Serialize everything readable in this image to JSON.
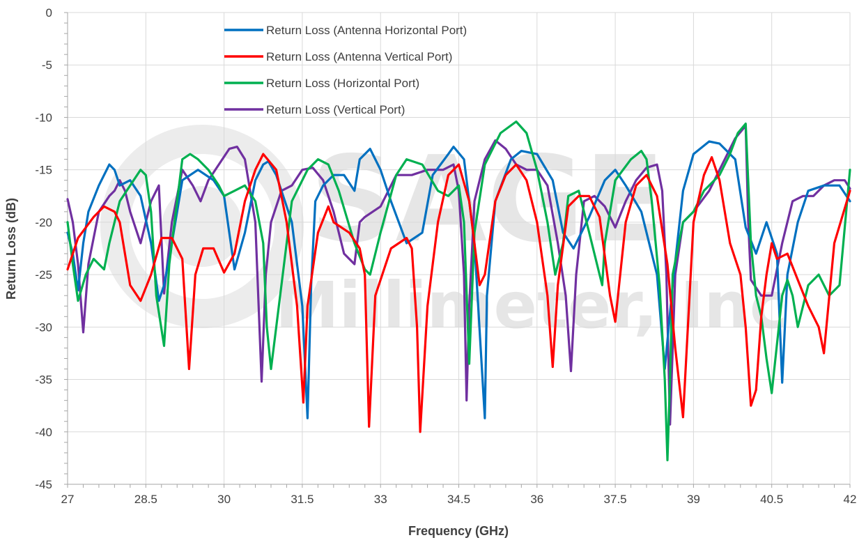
{
  "chart_data": {
    "type": "line",
    "title": "",
    "xlabel": "Frequency (GHz)",
    "ylabel": "Return Loss (dB)",
    "xlim": [
      27,
      42
    ],
    "ylim": [
      -45,
      0
    ],
    "xticks": [
      "27",
      "28.5",
      "30",
      "31.5",
      "33",
      "34.5",
      "36",
      "37.5",
      "39",
      "40.5",
      "42"
    ],
    "yticks": [
      "0",
      "-5",
      "-10",
      "-15",
      "-20",
      "-25",
      "-30",
      "-35",
      "-40",
      "-45"
    ],
    "grid": "major gridlines",
    "legend_position": "top-center",
    "watermark": [
      "SAGE",
      "Millimeter, Inc"
    ],
    "series": [
      {
        "name": "Return Loss (Antenna Horizontal Port)",
        "color": "#0070c0",
        "x": [
          27.0,
          27.1,
          27.2,
          27.3,
          27.4,
          27.6,
          27.8,
          27.9,
          28.0,
          28.2,
          28.4,
          28.6,
          28.75,
          28.85,
          29.0,
          29.2,
          29.5,
          29.8,
          30.0,
          30.2,
          30.4,
          30.6,
          30.75,
          30.85,
          31.0,
          31.3,
          31.5,
          31.6,
          31.67,
          31.75,
          31.9,
          32.1,
          32.3,
          32.5,
          32.55,
          32.6,
          32.8,
          33.0,
          33.2,
          33.5,
          33.8,
          34.0,
          34.3,
          34.4,
          34.6,
          34.8,
          35.0,
          35.04,
          35.2,
          35.5,
          35.7,
          36.0,
          36.3,
          36.5,
          36.7,
          37.0,
          37.3,
          37.5,
          37.7,
          38.0,
          38.3,
          38.45,
          38.6,
          38.8,
          39.0,
          39.3,
          39.5,
          39.8,
          40.0,
          40.2,
          40.4,
          40.6,
          40.7,
          40.8,
          41.0,
          41.2,
          41.5,
          41.8,
          42.0
        ],
        "values": [
          -21,
          -23,
          -26.5,
          -22,
          -19,
          -16.5,
          -14.5,
          -15,
          -16.5,
          -16,
          -17.5,
          -22,
          -27.5,
          -26,
          -22,
          -16,
          -15,
          -16,
          -17.5,
          -24.5,
          -21,
          -16,
          -14.5,
          -14.2,
          -15.5,
          -20,
          -28,
          -38.7,
          -26,
          -18,
          -16.5,
          -15.5,
          -15.5,
          -17,
          -15.5,
          -14,
          -13,
          -15,
          -18,
          -22,
          -21,
          -15.5,
          -13.5,
          -12.8,
          -14,
          -22,
          -38.7,
          -27,
          -18,
          -14,
          -13.2,
          -13.5,
          -16,
          -21,
          -22.5,
          -19.5,
          -16,
          -15,
          -16.5,
          -19,
          -25,
          -34,
          -26,
          -17,
          -13.5,
          -12.3,
          -12.5,
          -14,
          -20.5,
          -23,
          -20,
          -23,
          -35.3,
          -25,
          -20,
          -17,
          -16.5,
          -16.5,
          -18
        ]
      },
      {
        "name": "Return Loss (Antenna Vertical Port)",
        "color": "#ff0000",
        "x": [
          27.0,
          27.2,
          27.5,
          27.7,
          27.9,
          28.0,
          28.2,
          28.4,
          28.6,
          28.8,
          29.0,
          29.2,
          29.33,
          29.45,
          29.6,
          29.8,
          30.0,
          30.2,
          30.4,
          30.6,
          30.75,
          31.0,
          31.2,
          31.4,
          31.52,
          31.6,
          31.8,
          32.0,
          32.1,
          32.4,
          32.6,
          32.7,
          32.78,
          32.9,
          33.2,
          33.5,
          33.6,
          33.7,
          33.76,
          33.9,
          34.1,
          34.3,
          34.5,
          34.7,
          34.9,
          35.0,
          35.2,
          35.4,
          35.6,
          35.8,
          36.0,
          36.2,
          36.3,
          36.4,
          36.6,
          36.8,
          37.0,
          37.2,
          37.4,
          37.5,
          37.7,
          37.9,
          38.1,
          38.3,
          38.5,
          38.65,
          38.8,
          39.0,
          39.2,
          39.35,
          39.5,
          39.7,
          39.9,
          40.0,
          40.1,
          40.2,
          40.3,
          40.4,
          40.5,
          40.6,
          40.8,
          41.0,
          41.2,
          41.4,
          41.5,
          41.7,
          42.0
        ],
        "values": [
          -24.5,
          -21.5,
          -19.5,
          -18.5,
          -19,
          -20,
          -26,
          -27.5,
          -25,
          -21.5,
          -21.5,
          -23.5,
          -34,
          -25,
          -22.5,
          -22.5,
          -24.8,
          -23,
          -18,
          -15,
          -13.5,
          -15,
          -20,
          -28,
          -37.2,
          -28,
          -21,
          -18.5,
          -20,
          -21,
          -22.5,
          -25,
          -39.5,
          -27,
          -22.5,
          -21.5,
          -22.5,
          -30,
          -40,
          -28,
          -20,
          -15.5,
          -14.5,
          -18,
          -26,
          -25,
          -18,
          -15.5,
          -14.5,
          -16,
          -20,
          -27,
          -33.8,
          -26,
          -18.5,
          -17.5,
          -17.5,
          -19.5,
          -27,
          -29.5,
          -20,
          -16.5,
          -15.5,
          -17.5,
          -24,
          -32,
          -38.6,
          -20,
          -15.5,
          -13.8,
          -16,
          -22,
          -25,
          -30,
          -37.5,
          -36,
          -29,
          -25,
          -22,
          -23.5,
          -23,
          -25.5,
          -28,
          -30,
          -32.5,
          -22,
          -17
        ]
      },
      {
        "name": "Return Loss (Horizontal Port)",
        "color": "#00b050",
        "x": [
          27.0,
          27.1,
          27.2,
          27.35,
          27.5,
          27.6,
          27.7,
          27.8,
          28.0,
          28.2,
          28.4,
          28.5,
          28.6,
          28.7,
          28.85,
          28.95,
          29.1,
          29.2,
          29.35,
          29.5,
          29.7,
          29.9,
          30.0,
          30.2,
          30.4,
          30.6,
          30.75,
          30.82,
          30.9,
          31.0,
          31.3,
          31.6,
          31.8,
          32.0,
          32.2,
          32.5,
          32.7,
          32.8,
          33.0,
          33.3,
          33.5,
          33.8,
          34.1,
          34.3,
          34.5,
          34.6,
          34.7,
          34.8,
          35.0,
          35.3,
          35.6,
          35.8,
          36.0,
          36.2,
          36.35,
          36.5,
          36.6,
          36.8,
          37.0,
          37.2,
          37.25,
          37.3,
          37.5,
          37.8,
          38.0,
          38.1,
          38.2,
          38.35,
          38.45,
          38.5,
          38.55,
          38.6,
          38.8,
          39.0,
          39.2,
          39.5,
          39.7,
          39.85,
          40.0,
          40.1,
          40.2,
          40.3,
          40.4,
          40.5,
          40.7,
          40.8,
          40.9,
          41.0,
          41.2,
          41.4,
          41.6,
          41.8,
          42.0
        ],
        "values": [
          -20,
          -24,
          -27.5,
          -25,
          -23.5,
          -24,
          -24.5,
          -22,
          -18,
          -16.5,
          -15,
          -15.5,
          -19,
          -27,
          -31.8,
          -24,
          -18,
          -14,
          -13.5,
          -14,
          -15,
          -16.5,
          -17.5,
          -17,
          -16.5,
          -18,
          -22,
          -30,
          -34,
          -30,
          -18,
          -15,
          -14,
          -14.5,
          -17,
          -22,
          -24.5,
          -25,
          -21,
          -15.5,
          -14,
          -14.5,
          -17,
          -17.5,
          -16.5,
          -20,
          -33.5,
          -21,
          -14.5,
          -11.5,
          -10.4,
          -11.5,
          -15,
          -20,
          -25,
          -22,
          -17.5,
          -17,
          -21,
          -25,
          -26,
          -22,
          -16,
          -14,
          -13.2,
          -14,
          -18,
          -26,
          -35,
          -42.7,
          -35,
          -25,
          -20,
          -19,
          -17,
          -15.5,
          -13.5,
          -11.5,
          -10.6,
          -22,
          -27,
          -29,
          -33,
          -36.3,
          -27,
          -25.5,
          -27,
          -30,
          -26,
          -25,
          -27,
          -26,
          -15
        ]
      },
      {
        "name": "Return Loss (Vertical Port)",
        "color": "#7030a0",
        "x": [
          27.0,
          27.1,
          27.2,
          27.3,
          27.4,
          27.6,
          27.8,
          27.9,
          28.0,
          28.1,
          28.2,
          28.4,
          28.6,
          28.75,
          28.85,
          29.0,
          29.2,
          29.4,
          29.55,
          29.7,
          29.9,
          30.1,
          30.25,
          30.4,
          30.6,
          30.72,
          30.8,
          30.9,
          31.1,
          31.3,
          31.5,
          31.7,
          31.9,
          32.1,
          32.3,
          32.5,
          32.6,
          32.7,
          32.85,
          33.0,
          33.3,
          33.6,
          33.9,
          34.2,
          34.4,
          34.5,
          34.6,
          34.65,
          34.7,
          34.8,
          35.0,
          35.2,
          35.4,
          35.6,
          35.8,
          36.0,
          36.2,
          36.4,
          36.55,
          36.65,
          36.75,
          36.9,
          37.1,
          37.3,
          37.5,
          37.7,
          37.9,
          38.1,
          38.3,
          38.4,
          38.48,
          38.55,
          38.65,
          38.8,
          39.0,
          39.3,
          39.6,
          39.8,
          40.0,
          40.05,
          40.1,
          40.3,
          40.5,
          40.7,
          40.9,
          41.1,
          41.3,
          41.5,
          41.7,
          41.9,
          42.0
        ],
        "values": [
          -17.8,
          -20,
          -24,
          -30.5,
          -24,
          -19,
          -17.5,
          -17,
          -16,
          -17,
          -19,
          -22,
          -18,
          -16.5,
          -26.8,
          -20,
          -15,
          -16.5,
          -18,
          -16,
          -14.5,
          -13,
          -12.8,
          -14,
          -20,
          -35.2,
          -25,
          -20,
          -17,
          -16.5,
          -15,
          -14.8,
          -16,
          -19,
          -23,
          -24,
          -20,
          -19.5,
          -19,
          -18.5,
          -15.5,
          -15.5,
          -15,
          -15,
          -14.5,
          -17,
          -25,
          -37,
          -28,
          -18,
          -14,
          -12.2,
          -13,
          -14.5,
          -15,
          -15,
          -16.5,
          -22,
          -27,
          -34.2,
          -25,
          -18,
          -17.5,
          -18.5,
          -20.5,
          -18,
          -16,
          -14.8,
          -14.5,
          -17,
          -25,
          -39.3,
          -25,
          -20,
          -19,
          -17,
          -14,
          -12,
          -10.8,
          -20,
          -25.5,
          -27,
          -27,
          -22,
          -18,
          -17.5,
          -17.5,
          -16.5,
          -16,
          -16,
          -16.8
        ]
      }
    ]
  }
}
